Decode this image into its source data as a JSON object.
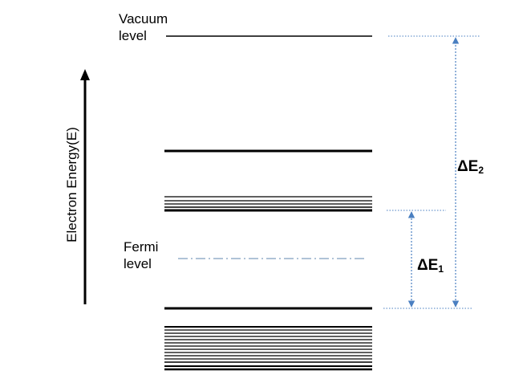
{
  "labels": {
    "vacuum_line1": "Vacuum",
    "vacuum_line2": "level",
    "fermi_line1": "Fermi",
    "fermi_line2": "level",
    "axis": "Electron Energy(E)",
    "delta_e2_symbol": "ΔE",
    "delta_e2_sub": "2",
    "delta_e1_symbol": "ΔE",
    "delta_e1_sub": "1"
  },
  "colors": {
    "levels": "#000000",
    "fermi_line": "#7f9fbf",
    "guides": "#4a7fc1",
    "arrows": "#4a7fc1"
  }
}
